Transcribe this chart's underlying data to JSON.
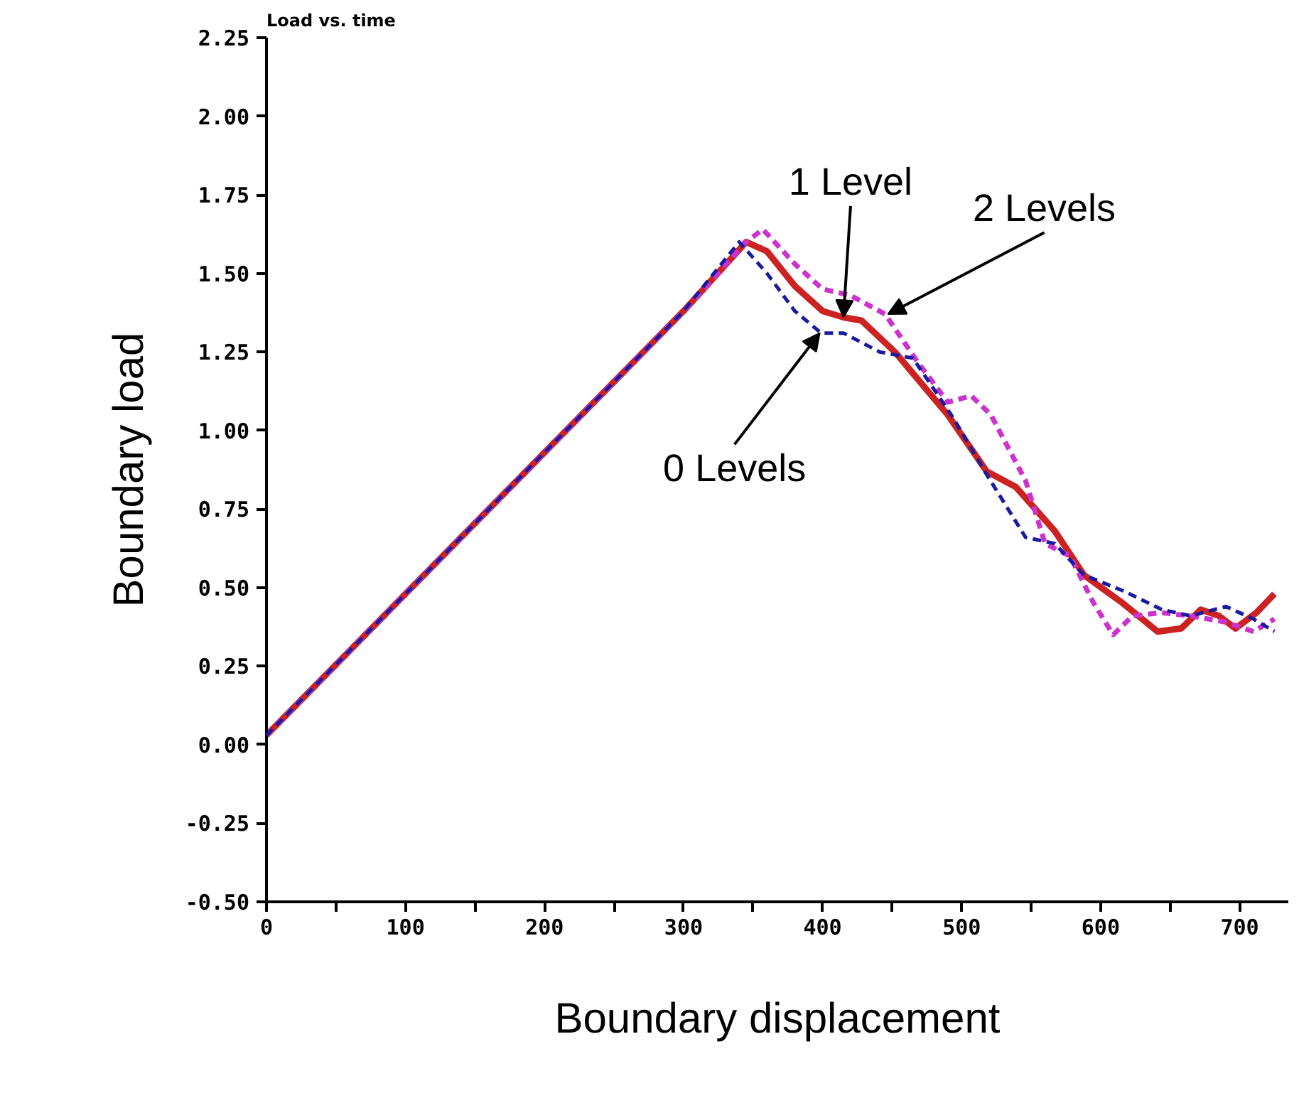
{
  "chart_data": {
    "type": "line",
    "title": "Load vs. time",
    "xlabel": "Boundary displacement",
    "ylabel": "Boundary load",
    "xlim": [
      0,
      735
    ],
    "ylim": [
      -0.5,
      2.25
    ],
    "xticks": [
      0,
      {
        "value": 50,
        "label": null
      },
      100,
      {
        "value": 150,
        "label": null
      },
      200,
      {
        "value": 250,
        "label": null
      },
      300,
      {
        "value": 350,
        "label": null
      },
      400,
      {
        "value": 450,
        "label": null
      },
      500,
      {
        "value": 550,
        "label": null
      },
      600,
      {
        "value": 650,
        "label": null
      },
      700
    ],
    "yticks": [
      {
        "value": -0.5,
        "label": "-0.50"
      },
      {
        "value": -0.25,
        "label": "-0.25"
      },
      {
        "value": 0,
        "label": "0.00"
      },
      {
        "value": 0.25,
        "label": "0.25"
      },
      {
        "value": 0.5,
        "label": "0.50"
      },
      {
        "value": 0.75,
        "label": "0.75"
      },
      {
        "value": 1,
        "label": "1.00"
      },
      {
        "value": 1.25,
        "label": "1.25"
      },
      {
        "value": 1.5,
        "label": "1.50"
      },
      {
        "value": 1.75,
        "label": "1.75"
      },
      {
        "value": 2,
        "label": "2.00"
      },
      {
        "value": 2.25,
        "label": "2.25"
      }
    ],
    "grid": false,
    "series": [
      {
        "color": "#cc2222",
        "line_style": "solid",
        "x": [
          0,
          100,
          200,
          300,
          345,
          360,
          380,
          400,
          415,
          428,
          452,
          490,
          518,
          539,
          567,
          588,
          616,
          641,
          658,
          672,
          685,
          697,
          712,
          725
        ],
        "values": [
          0.03,
          0.48,
          0.93,
          1.38,
          1.6,
          1.57,
          1.46,
          1.38,
          1.36,
          1.35,
          1.25,
          1.05,
          0.87,
          0.82,
          0.68,
          0.54,
          0.45,
          0.36,
          0.37,
          0.43,
          0.41,
          0.37,
          0.42,
          0.48
        ]
      },
      {
        "color": "#1a1aa0",
        "line_style": "dashed",
        "x": [
          0,
          100,
          200,
          300,
          340,
          360,
          380,
          399,
          415,
          441,
          465,
          494,
          518,
          546,
          567,
          588,
          616,
          644,
          665,
          690,
          710,
          725
        ],
        "values": [
          0.03,
          0.48,
          0.93,
          1.38,
          1.6,
          1.5,
          1.38,
          1.31,
          1.31,
          1.25,
          1.23,
          1.04,
          0.86,
          0.66,
          0.64,
          0.54,
          0.49,
          0.43,
          0.41,
          0.44,
          0.4,
          0.36
        ]
      },
      {
        "color": "#cc33cc",
        "line_style": "dashed",
        "x": [
          0,
          100,
          200,
          300,
          345,
          357,
          380,
          400,
          420,
          445,
          468,
          490,
          507,
          521,
          546,
          560,
          578,
          595,
          609,
          623,
          644,
          665,
          690,
          710,
          725
        ],
        "values": [
          0.03,
          0.48,
          0.93,
          1.38,
          1.6,
          1.64,
          1.53,
          1.45,
          1.43,
          1.37,
          1.22,
          1.09,
          1.11,
          1.05,
          0.84,
          0.64,
          0.6,
          0.45,
          0.35,
          0.41,
          0.42,
          0.41,
          0.39,
          0.36,
          0.4
        ]
      }
    ],
    "annotations": [
      {
        "text": "1 Level",
        "x": 415,
        "y": 1.36
      },
      {
        "text": "2 Levels",
        "x": 447,
        "y": 1.37
      },
      {
        "text": "0 Levels",
        "x": 398,
        "y": 1.31
      }
    ]
  }
}
